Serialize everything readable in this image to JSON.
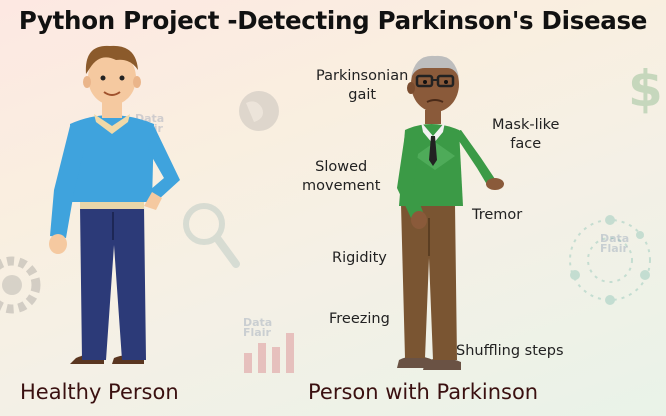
{
  "title": "Python Project -Detecting Parkinson's Disease",
  "captions": {
    "healthy": "Healthy Person",
    "parkinson": "Person with Parkinson"
  },
  "symptoms": {
    "gait_line1": "Parkinsonian",
    "gait_line2": "gait",
    "mask_line1": "Mask-like",
    "mask_line2": "face",
    "slowed_line1": "Slowed",
    "slowed_line2": "movement",
    "tremor": "Tremor",
    "rigidity": "Rigidity",
    "freezing": "Freezing",
    "shuffling": "Shuffling steps"
  },
  "watermark": {
    "line1": "Data",
    "line2": "Flair"
  },
  "colors": {
    "healthy_shirt": "#3fa3dd",
    "healthy_pants": "#2c3a78",
    "elder_sweater": "#3b9a46",
    "elder_pants": "#7a5532",
    "caption_text": "#3a1010"
  },
  "icons": [
    "gear-icon",
    "magnifier-icon",
    "dollar-icon",
    "bar-chart-icon",
    "globe-icon",
    "network-icon"
  ]
}
